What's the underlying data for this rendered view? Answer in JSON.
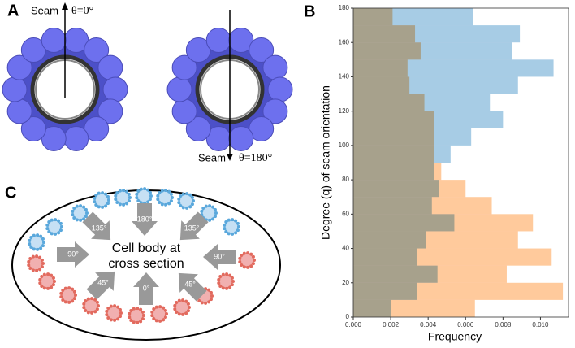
{
  "panels": {
    "A": {
      "label": "A",
      "left": {
        "seam": "Seam",
        "angle": "θ=0°"
      },
      "right": {
        "seam": "Seam",
        "angle": "θ=180°"
      }
    },
    "B": {
      "label": "B"
    },
    "C": {
      "label": "C",
      "center": [
        "Cell body at",
        "cross section"
      ],
      "arrows": [
        "135°",
        "180°",
        "135°",
        "90°",
        "90°",
        "45°",
        "0°",
        "45°"
      ]
    }
  },
  "chart_data": {
    "type": "histogram",
    "orientation": "horizontal",
    "xlabel": "Frequency",
    "ylabel": "Degree (q) of seam orientation",
    "bins": [
      0,
      10,
      20,
      30,
      40,
      50,
      60,
      70,
      80,
      90,
      100,
      110,
      120,
      130,
      140,
      150,
      160,
      170,
      180
    ],
    "series": [
      {
        "color": "#ff9f4a",
        "values": [
          0.0065,
          0.0112,
          0.0082,
          0.0106,
          0.0088,
          0.0096,
          0.0074,
          0.006,
          0.0047,
          0.0043,
          0.0043,
          0.0043,
          0.0038,
          0.003,
          0.0029,
          0.0036,
          0.0033,
          0.0021
        ]
      },
      {
        "color": "#5fa2d0",
        "values": [
          0.002,
          0.0034,
          0.0045,
          0.0034,
          0.0039,
          0.0054,
          0.0042,
          0.0046,
          0.0043,
          0.0052,
          0.0063,
          0.008,
          0.0073,
          0.0088,
          0.0107,
          0.0085,
          0.0089,
          0.0064
        ]
      }
    ],
    "xlim": [
      0,
      0.0115
    ],
    "ylim": [
      0,
      180
    ],
    "xticks": [
      {
        "value": 0,
        "label": "0.000"
      },
      {
        "value": 0.002,
        "label": "0.002"
      },
      {
        "value": 0.004,
        "label": "0.004"
      },
      {
        "value": 0.006,
        "label": "0.006"
      },
      {
        "value": 0.008,
        "label": "0.008"
      },
      {
        "value": 0.01,
        "label": "0.010"
      }
    ],
    "yticks": [
      0,
      20,
      40,
      60,
      80,
      100,
      120,
      140,
      160,
      180
    ]
  }
}
